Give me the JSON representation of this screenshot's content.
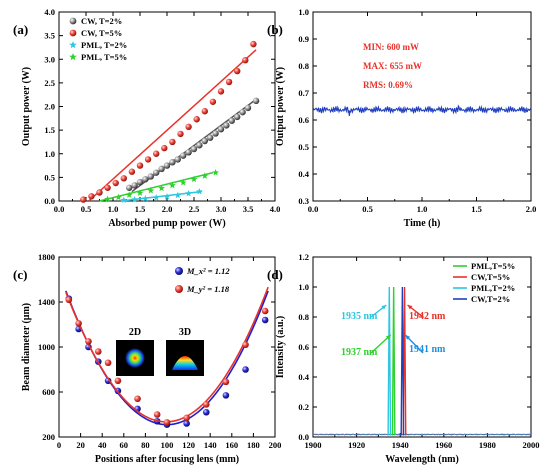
{
  "chart_data": [
    {
      "panel": "(a)",
      "type": "scatter",
      "xlabel": "Absorbed pump power (W)",
      "ylabel": "Output power (W)",
      "xlim": [
        0,
        4
      ],
      "ylim": [
        0,
        4
      ],
      "xticks": [
        "0.0",
        "0.5",
        "1.0",
        "1.5",
        "2.0",
        "2.5",
        "3.0",
        "3.5",
        "4.0"
      ],
      "yticks": [
        "0.0",
        "0.5",
        "1.0",
        "1.5",
        "2.0",
        "2.5",
        "3.0",
        "3.5",
        "4.0"
      ],
      "legend_position": "top-left",
      "series": [
        {
          "name": "CW, T=2%",
          "color": "#555555",
          "marker": "sphere",
          "x": [
            1.3,
            1.4,
            1.5,
            1.6,
            1.7,
            1.8,
            1.9,
            2.0,
            2.1,
            2.2,
            2.3,
            2.4,
            2.5,
            2.6,
            2.7,
            2.8,
            2.9,
            3.0,
            3.1,
            3.2,
            3.3,
            3.4,
            3.5,
            3.65
          ],
          "y": [
            0.28,
            0.33,
            0.4,
            0.46,
            0.52,
            0.6,
            0.68,
            0.75,
            0.82,
            0.88,
            0.96,
            1.03,
            1.1,
            1.18,
            1.27,
            1.34,
            1.43,
            1.52,
            1.6,
            1.7,
            1.78,
            1.88,
            1.97,
            2.12
          ],
          "fit": {
            "x": [
              1.35,
              3.65
            ],
            "y": [
              0.2,
              2.15
            ]
          }
        },
        {
          "name": "CW, T=5%",
          "color": "#e8322a",
          "marker": "sphere",
          "x": [
            0.45,
            0.6,
            0.75,
            0.9,
            1.05,
            1.2,
            1.35,
            1.5,
            1.65,
            1.8,
            1.95,
            2.1,
            2.25,
            2.4,
            2.55,
            2.7,
            2.85,
            3.0,
            3.15,
            3.3,
            3.45,
            3.6
          ],
          "y": [
            0.03,
            0.1,
            0.18,
            0.28,
            0.38,
            0.48,
            0.62,
            0.75,
            0.88,
            1.0,
            1.12,
            1.25,
            1.42,
            1.57,
            1.73,
            1.9,
            2.1,
            2.32,
            2.52,
            2.75,
            2.98,
            3.32
          ],
          "fit": {
            "x": [
              0.55,
              3.65
            ],
            "y": [
              0.0,
              3.2
            ]
          }
        },
        {
          "name": "PML, T=2%",
          "color": "#2cc7e0",
          "marker": "star",
          "x": [
            1.2,
            1.4,
            1.6,
            1.8,
            2.0,
            2.2,
            2.4,
            2.6
          ],
          "y": [
            0.02,
            0.03,
            0.05,
            0.07,
            0.09,
            0.12,
            0.16,
            0.2
          ],
          "fit": {
            "x": [
              1.15,
              2.65
            ],
            "y": [
              0.0,
              0.2
            ]
          }
        },
        {
          "name": "PML, T=5%",
          "color": "#2ed12e",
          "marker": "star",
          "x": [
            0.9,
            1.1,
            1.3,
            1.5,
            1.7,
            1.9,
            2.1,
            2.3,
            2.5,
            2.7,
            2.9
          ],
          "y": [
            0.04,
            0.08,
            0.13,
            0.17,
            0.22,
            0.27,
            0.33,
            0.39,
            0.46,
            0.53,
            0.6
          ],
          "fit": {
            "x": [
              0.75,
              2.85
            ],
            "y": [
              0.0,
              0.6
            ]
          }
        }
      ]
    },
    {
      "panel": "(b)",
      "type": "line",
      "xlabel": "Time (h)",
      "ylabel": "Output power (W)",
      "xlim": [
        0,
        2
      ],
      "ylim": [
        0.3,
        1.0
      ],
      "xticks": [
        "0.0",
        "0.5",
        "1.0",
        "1.5",
        "2.0"
      ],
      "yticks": [
        "0.3",
        "0.4",
        "0.5",
        "0.6",
        "0.7",
        "0.8",
        "0.9",
        "1.0"
      ],
      "series": [
        {
          "name": "",
          "color": "#1f3fbf",
          "mean": 0.638,
          "min": 0.6,
          "max": 0.655,
          "x_range": [
            0,
            2
          ]
        }
      ],
      "annotations": [
        {
          "text": "MIN:  600 mW",
          "color": "#e8322a"
        },
        {
          "text": "MAX:  655 mW",
          "color": "#e8322a"
        },
        {
          "text": "RMS:  0.69%",
          "color": "#e8322a"
        }
      ]
    },
    {
      "panel": "(c)",
      "type": "scatter",
      "xlabel": "Positions after focusing lens (mm)",
      "ylabel": "Beam diameter (μm)",
      "xlim": [
        -10,
        210
      ],
      "ylim": [
        200,
        1800
      ],
      "xticks": [
        "0",
        "20",
        "40",
        "60",
        "80",
        "100",
        "120",
        "140",
        "160",
        "180",
        "200"
      ],
      "yticks": [
        "200",
        "600",
        "1000",
        "1400",
        "1800"
      ],
      "legend_position": "top-center",
      "series": [
        {
          "name": "M_x² = 1.12",
          "color": "#2020d0",
          "x": [
            0,
            10,
            20,
            30,
            40,
            50,
            70,
            90,
            100,
            120,
            140,
            160,
            180,
            200
          ],
          "y": [
            1430,
            1160,
            1000,
            870,
            700,
            610,
            450,
            340,
            310,
            320,
            420,
            570,
            800,
            1240
          ],
          "fit": {
            "vertex_x": 100,
            "vertex_y": 310,
            "x_range": [
              -3,
              203
            ]
          }
        },
        {
          "name": "M_y² = 1.18",
          "color": "#e8322a",
          "x": [
            0,
            10,
            20,
            30,
            40,
            50,
            70,
            90,
            100,
            120,
            140,
            160,
            180,
            200
          ],
          "y": [
            1420,
            1210,
            1050,
            960,
            860,
            700,
            540,
            400,
            330,
            370,
            490,
            690,
            1020,
            1320
          ],
          "fit": {
            "vertex_x": 99,
            "vertex_y": 335,
            "x_range": [
              -3,
              203
            ]
          }
        }
      ],
      "inset_labels": [
        "2D",
        "3D"
      ]
    },
    {
      "panel": "(d)",
      "type": "line",
      "xlabel": "Wavelength (nm)",
      "ylabel": "Intensity (a.u.)",
      "xlim": [
        1900,
        2000
      ],
      "ylim": [
        0.0,
        1.2
      ],
      "xticks": [
        "1900",
        "1920",
        "1940",
        "1960",
        "1980",
        "2000"
      ],
      "yticks": [
        "0.0",
        "0.2",
        "0.4",
        "0.6",
        "0.8",
        "1.0",
        "1.2"
      ],
      "legend_position": "top-right",
      "series": [
        {
          "name": "PML,T=5%",
          "color": "#2ed12e",
          "peak_x": 1937,
          "peak_y": 1.0
        },
        {
          "name": "CW,T=5%",
          "color": "#e8322a",
          "peak_x": 1942,
          "peak_y": 1.0
        },
        {
          "name": "PML,T=2%",
          "color": "#2cc7e0",
          "peak_x": 1935,
          "peak_y": 1.0
        },
        {
          "name": "CW,T=2%",
          "color": "#1f3fbf",
          "peak_x": 1941,
          "peak_y": 1.0
        }
      ],
      "annotations": [
        {
          "text": "1935 nm",
          "color": "#2cc7e0"
        },
        {
          "text": "1942 nm",
          "color": "#e8322a"
        },
        {
          "text": "1937 nm",
          "color": "#2ed12e"
        },
        {
          "text": "1941 nm",
          "color": "#1f8fe0"
        }
      ]
    }
  ]
}
